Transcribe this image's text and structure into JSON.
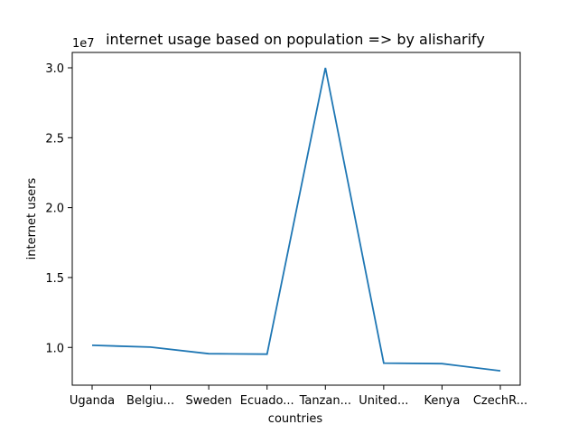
{
  "chart_data": {
    "type": "line",
    "title": "internet usage based on population => by alisharify",
    "xlabel": "countries",
    "ylabel": "internet users",
    "y_offset_label": "1e7",
    "categories": [
      "Uganda",
      "Belgiu...",
      "Sweden",
      "Ecuado...",
      "Tanzan...",
      "United...",
      "Kenya",
      "CzechR..."
    ],
    "series": [
      {
        "values": [
          10150000,
          10020000,
          9550000,
          9520000,
          30000000,
          8880000,
          8840000,
          8330000
        ]
      }
    ],
    "yticks": [
      10000000,
      15000000,
      20000000,
      25000000,
      30000000
    ],
    "ytick_labels": [
      "1.0",
      "1.5",
      "2.0",
      "2.5",
      "3.0"
    ],
    "ylim": [
      7300000,
      31100000
    ],
    "grid": false,
    "line_color": "#1f77b4"
  }
}
